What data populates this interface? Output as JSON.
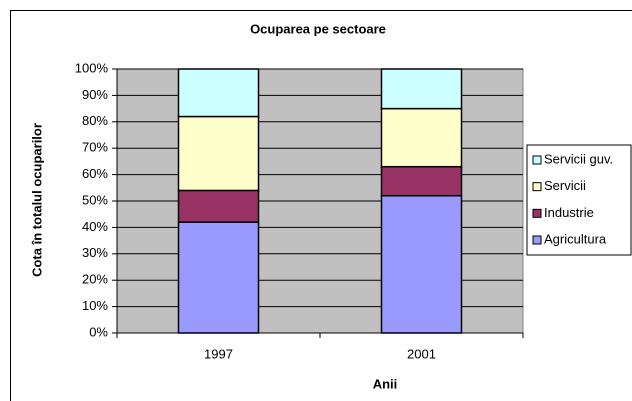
{
  "chart_data": {
    "type": "stacked_bar",
    "title": "Ocuparea pe sectoare",
    "x_label": "Anii",
    "y_label": "Cota în totalul ocuparilor",
    "categories": [
      "1997",
      "2001"
    ],
    "series": [
      {
        "name": "Agricultura",
        "color": "#9999ff",
        "values": [
          42,
          52
        ]
      },
      {
        "name": "Industrie",
        "color": "#993366",
        "values": [
          12,
          11
        ]
      },
      {
        "name": "Servicii",
        "color": "#ffffcc",
        "values": [
          28,
          22
        ]
      },
      {
        "name": "Servicii guv.",
        "color": "#ccffff",
        "values": [
          18,
          15
        ]
      }
    ],
    "ylim": [
      0,
      100
    ],
    "yticks": [
      {
        "value": 0,
        "label": "0%"
      },
      {
        "value": 10,
        "label": "10%"
      },
      {
        "value": 20,
        "label": "20%"
      },
      {
        "value": 30,
        "label": "30%"
      },
      {
        "value": 40,
        "label": "40%"
      },
      {
        "value": 50,
        "label": "50%"
      },
      {
        "value": 60,
        "label": "60%"
      },
      {
        "value": 70,
        "label": "70%"
      },
      {
        "value": 80,
        "label": "80%"
      },
      {
        "value": 90,
        "label": "90%"
      },
      {
        "value": 100,
        "label": "100%"
      }
    ],
    "grid": true,
    "legend": "right",
    "plot_background": "#c0c0c0"
  }
}
